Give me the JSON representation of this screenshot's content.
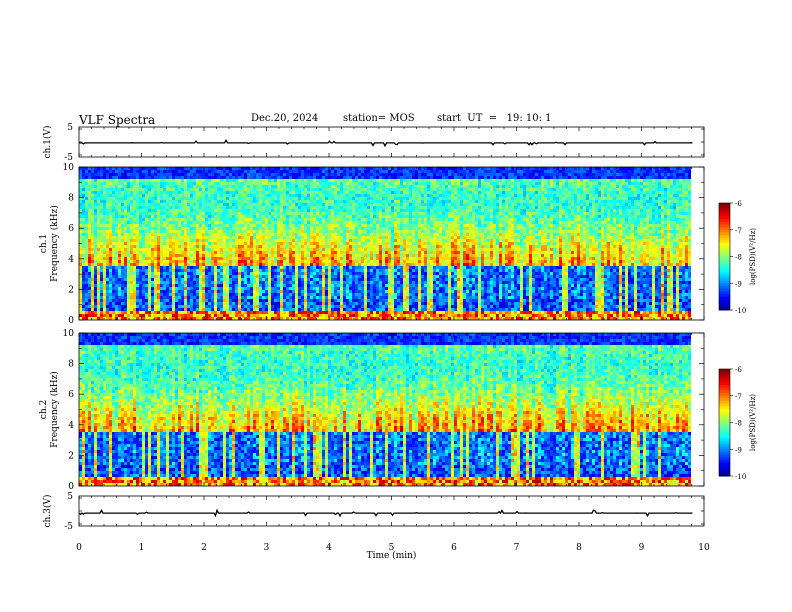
{
  "header": {
    "title": "VLF Spectra",
    "date": "Dec.20, 2024",
    "station": "station= MOS",
    "start": "start  UT  =   19: 10: 1"
  },
  "chart_data": [
    {
      "type": "line",
      "id": "ch1-waveform",
      "ylabel": "ch.1(V)",
      "ylim": [
        -5,
        5
      ],
      "yticks": [
        "5",
        "-5"
      ],
      "xlim": [
        0,
        10
      ],
      "series": [
        {
          "values": "flat trace near -0.2 V with small spikes"
        }
      ]
    },
    {
      "type": "heatmap",
      "id": "ch1-spectrogram",
      "ylabel": "ch.1\nFrequency (kHz)",
      "ylim": [
        0,
        10
      ],
      "yticks": [
        "0",
        "2",
        "4",
        "6",
        "8",
        "10"
      ],
      "xlim": [
        0,
        9.83
      ],
      "colorbar": {
        "label": "log(PSD)(V²/Hz)",
        "range": [
          -10,
          -6
        ],
        "ticks": [
          "-6",
          "-7",
          "-8",
          "-9",
          "-10"
        ]
      }
    },
    {
      "type": "heatmap",
      "id": "ch2-spectrogram",
      "ylabel": "ch.2\nFrequency (kHz)",
      "ylim": [
        0,
        10
      ],
      "yticks": [
        "0",
        "2",
        "4",
        "6",
        "8",
        "10"
      ],
      "xlim": [
        0,
        9.83
      ],
      "colorbar": {
        "label": "log(PSD)(V²/Hz)",
        "range": [
          -10,
          -6
        ],
        "ticks": [
          "-6",
          "-7",
          "-8",
          "-9",
          "-10"
        ]
      }
    },
    {
      "type": "line",
      "id": "ch3-waveform",
      "ylabel": "ch.3(V)",
      "ylim": [
        -5,
        5
      ],
      "yticks": [
        "5",
        "-5"
      ],
      "xlim": [
        0,
        10
      ],
      "series": [
        {
          "values": "flat trace near -0.5 V with small spikes"
        }
      ]
    }
  ],
  "xaxis": {
    "label": "Time (min)",
    "ticks": [
      "0",
      "1",
      "2",
      "3",
      "4",
      "5",
      "6",
      "7",
      "8",
      "9",
      "10"
    ]
  }
}
